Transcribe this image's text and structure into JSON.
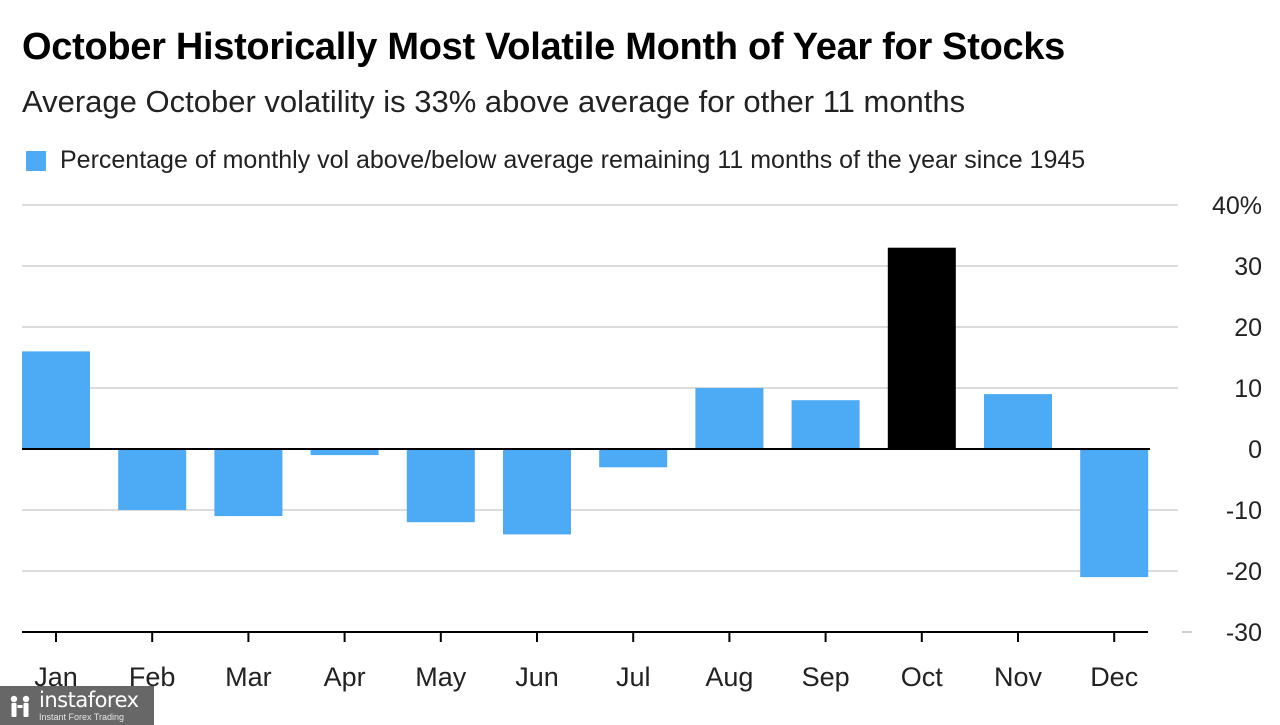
{
  "chart_data": {
    "type": "bar",
    "title": "October Historically Most Volatile Month of Year for Stocks",
    "subtitle": "Average October volatility is 33% above average for other 11 months",
    "legend": [
      {
        "label": "Percentage of monthly vol above/below average remaining 11 months of the year since 1945",
        "color": "#4daaf5"
      }
    ],
    "categories": [
      "Jan",
      "Feb",
      "Mar",
      "Apr",
      "May",
      "Jun",
      "Jul",
      "Aug",
      "Sep",
      "Oct",
      "Nov",
      "Dec"
    ],
    "values": [
      16,
      -10,
      -11,
      -1,
      -12,
      -14,
      -3,
      10,
      8,
      33,
      9,
      -21
    ],
    "highlight_index": 9,
    "bar_color": "#4daaf5",
    "highlight_color": "#000000",
    "ylim": [
      -30,
      40
    ],
    "yticks": [
      -30,
      -20,
      -10,
      0,
      10,
      20,
      30,
      40
    ],
    "ytick_labels": [
      "-30",
      "-20",
      "-10",
      "0",
      "10",
      "20",
      "30",
      "40%"
    ],
    "axis_side": "right",
    "grid": true,
    "xlabel": "",
    "ylabel": ""
  },
  "watermark": {
    "brand": "instaforex",
    "tagline": "Instant Forex Trading",
    "icon": "instaforex-logo-icon"
  }
}
